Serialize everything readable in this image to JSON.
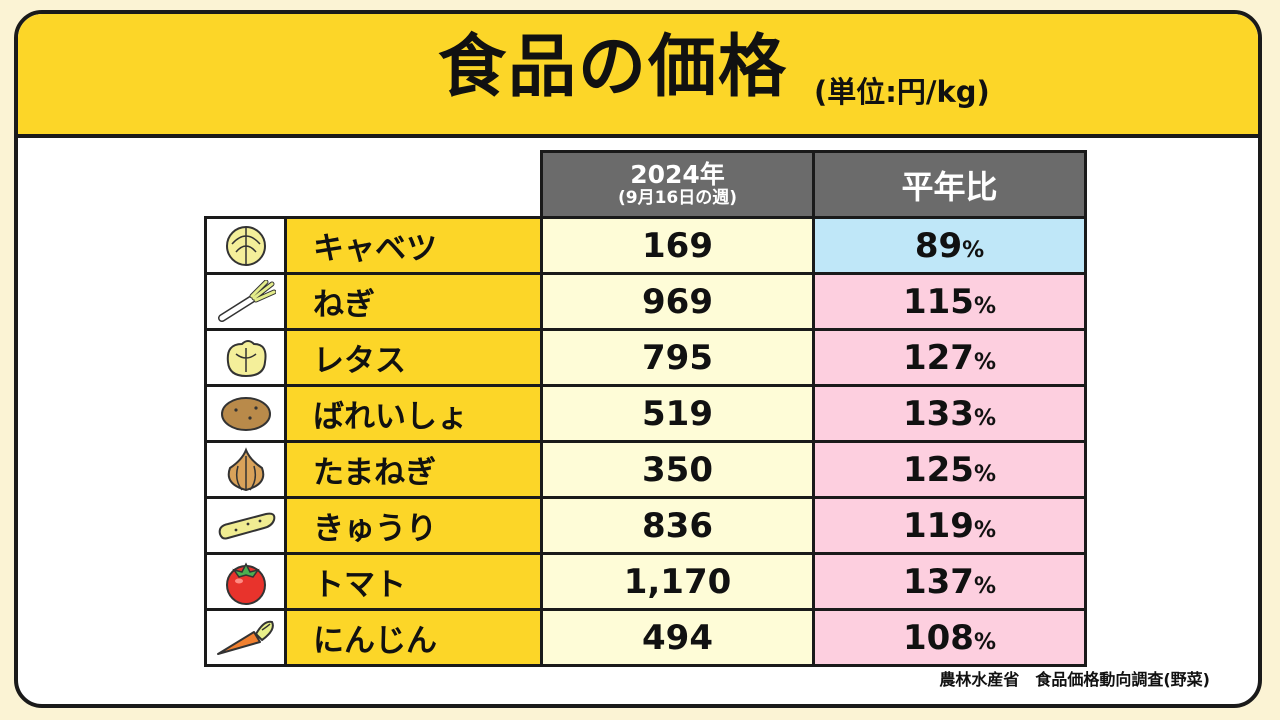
{
  "header": {
    "title": "食品の価格",
    "unit": "(単位:円/kg)"
  },
  "columns": {
    "price_main": "2024年",
    "price_sub": "(9月16日の週)",
    "ratio": "平年比"
  },
  "chart_data": {
    "type": "table",
    "title": "食品の価格",
    "unit": "(単位:円/kg)",
    "columns": [
      "2024年 (9月16日の週)",
      "平年比"
    ],
    "rows": [
      {
        "name": "キャベツ",
        "icon": "cabbage-icon",
        "price": "169",
        "ratio": "89",
        "trend": "down"
      },
      {
        "name": "ねぎ",
        "icon": "green-onion-icon",
        "price": "969",
        "ratio": "115",
        "trend": "up"
      },
      {
        "name": "レタス",
        "icon": "lettuce-icon",
        "price": "795",
        "ratio": "127",
        "trend": "up"
      },
      {
        "name": "ばれいしょ",
        "icon": "potato-icon",
        "price": "519",
        "ratio": "133",
        "trend": "up"
      },
      {
        "name": "たまねぎ",
        "icon": "onion-icon",
        "price": "350",
        "ratio": "125",
        "trend": "up"
      },
      {
        "name": "きゅうり",
        "icon": "cucumber-icon",
        "price": "836",
        "ratio": "119",
        "trend": "up"
      },
      {
        "name": "トマト",
        "icon": "tomato-icon",
        "price": "1,170",
        "ratio": "137",
        "trend": "up"
      },
      {
        "name": "にんじん",
        "icon": "carrot-icon",
        "price": "494",
        "ratio": "108",
        "trend": "up"
      }
    ],
    "ratio_unit": "%",
    "colors": {
      "header_bg": "#fcd628",
      "column_header_bg": "#6b6b6b",
      "price_bg": "#fefcd7",
      "above_normal": "#fdcfdf",
      "below_normal": "#bfe7f8"
    }
  },
  "footer": {
    "source": "農林水産省　食品価格動向調査(野菜)"
  }
}
